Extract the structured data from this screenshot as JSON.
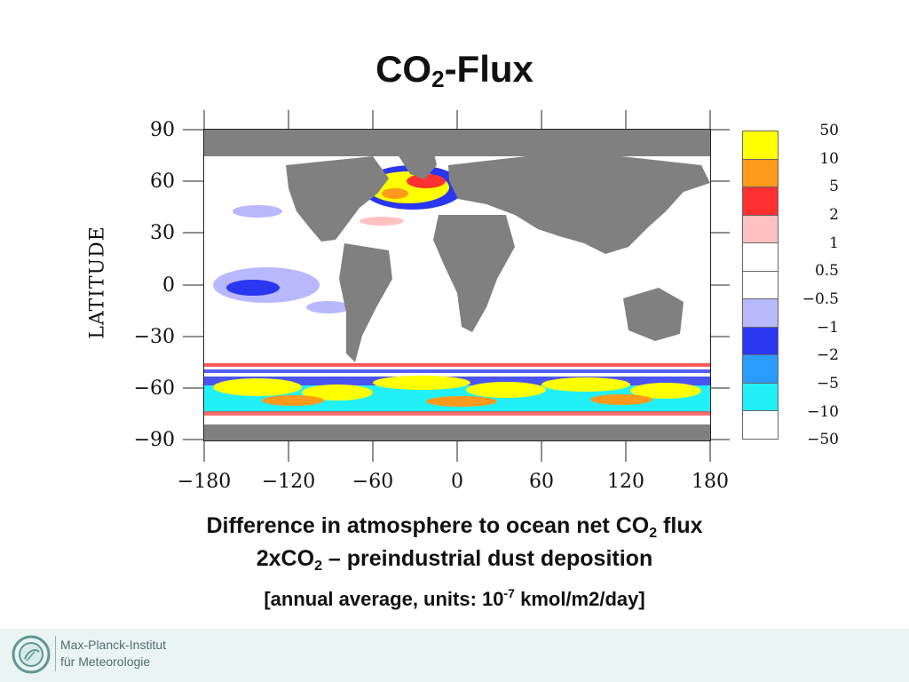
{
  "title": {
    "main": "CO",
    "sub": "2",
    "rest": "-Flux"
  },
  "map": {
    "y_axis_title": "LATITUDE",
    "y_ticks": [
      "90",
      "60",
      "30",
      "0",
      "−30",
      "−60",
      "−90"
    ],
    "x_ticks": [
      "−180",
      "−120",
      "−60",
      "0",
      "60",
      "120",
      "180"
    ],
    "lat_range": [
      -90,
      90
    ],
    "lon_range": [
      -180,
      180
    ],
    "land_color": "#808080",
    "ocean_color": "#ffffff"
  },
  "colorbar": {
    "labels": [
      "50",
      "10",
      "5",
      "2",
      "1",
      "0.5",
      "−0.5",
      "−1",
      "−2",
      "−5",
      "−10",
      "−50"
    ],
    "colors": [
      "#ffff00",
      "#ff9a1a",
      "#ff3030",
      "#ffc0c0",
      "#ffffff",
      "#ffffff",
      "#b8b8ff",
      "#2a36f0",
      "#2a9cff",
      "#22f0f8"
    ]
  },
  "caption": {
    "line1_a": "Difference in atmosphere to ocean net CO",
    "line1_sub": "2",
    "line1_b": " flux",
    "line2_a": "2xCO",
    "line2_sub": "2",
    "line2_b": " – preindustrial dust deposition",
    "line3_a": "[annual average, units: 10",
    "line3_sup": "-7",
    "line3_b": " kmol/m2/day]"
  },
  "footer": {
    "line1": "Max-Planck-Institut",
    "line2": "für Meteorologie"
  }
}
